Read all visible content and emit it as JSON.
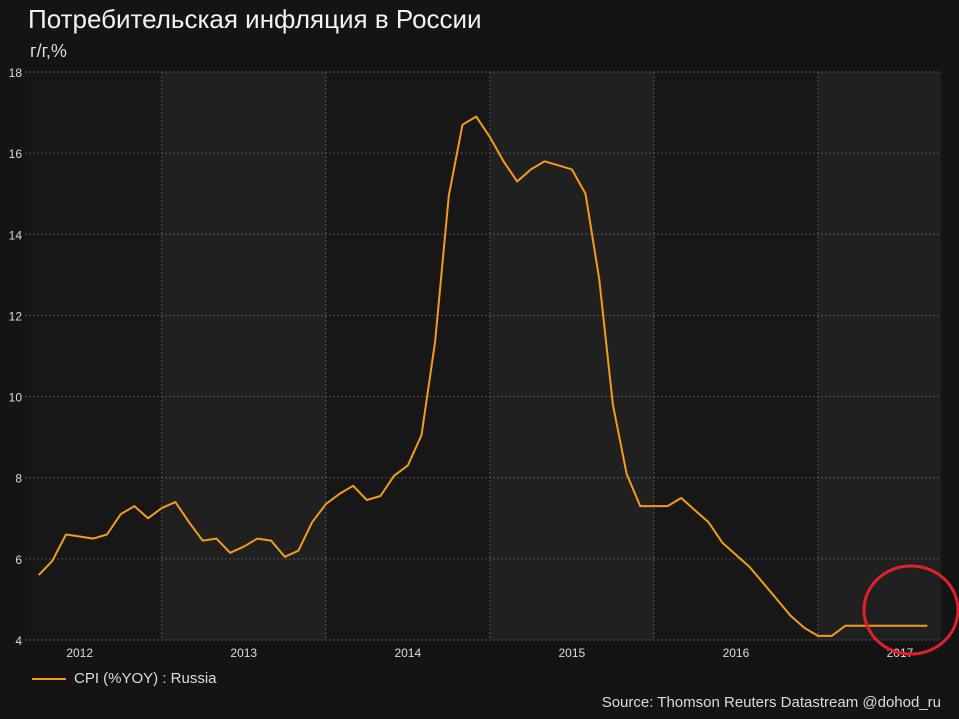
{
  "header": {
    "title": "Потребительская инфляция в России",
    "subtitle": "г/г,%"
  },
  "legend": {
    "label": "CPI (%YOY) : Russia"
  },
  "footer": {
    "source": "Source: Thomson Reuters Datastream @dohod_ru"
  },
  "colors": {
    "line": "#f39c1c",
    "highlight_circle": "#e0202a",
    "band_light": "#202020",
    "band_dark": "#171717",
    "grid": "#555555"
  },
  "chart_data": {
    "type": "line",
    "title": "Потребительская инфляция в России",
    "ylabel": "г/г,%",
    "ylim": [
      4,
      18
    ],
    "y_ticks": [
      4,
      6,
      8,
      10,
      12,
      14,
      16,
      18
    ],
    "xlim": [
      "2011-09",
      "2017-04"
    ],
    "x_tick_labels": [
      "2012",
      "2013",
      "2014",
      "2015",
      "2016",
      "2017"
    ],
    "grid": true,
    "legend_position": "bottom-left",
    "series": [
      {
        "name": "CPI (%YOY) : Russia",
        "x": [
          "2011-10",
          "2011-11",
          "2011-12",
          "2012-01",
          "2012-02",
          "2012-03",
          "2012-04",
          "2012-05",
          "2012-06",
          "2012-07",
          "2012-08",
          "2012-09",
          "2012-10",
          "2012-11",
          "2012-12",
          "2013-01",
          "2013-02",
          "2013-03",
          "2013-04",
          "2013-05",
          "2013-06",
          "2013-07",
          "2013-08",
          "2013-09",
          "2013-10",
          "2013-11",
          "2013-12",
          "2014-01",
          "2014-02",
          "2014-03",
          "2014-04",
          "2014-05",
          "2014-06",
          "2014-07",
          "2014-08",
          "2014-09",
          "2014-10",
          "2014-11",
          "2014-12",
          "2015-01",
          "2015-02",
          "2015-03",
          "2015-04",
          "2015-05",
          "2015-06",
          "2015-07",
          "2015-08",
          "2015-09",
          "2015-10",
          "2015-11",
          "2015-12",
          "2016-01",
          "2016-02",
          "2016-03",
          "2016-04",
          "2016-05",
          "2016-06",
          "2016-07",
          "2016-08",
          "2016-09",
          "2016-10",
          "2016-11",
          "2016-12",
          "2017-01",
          "2017-02",
          "2017-03"
        ],
        "values": [
          5.6,
          5.95,
          6.6,
          6.55,
          6.5,
          6.6,
          7.1,
          7.3,
          7.0,
          7.25,
          7.4,
          6.9,
          6.45,
          6.5,
          6.15,
          6.3,
          6.5,
          6.45,
          6.05,
          6.2,
          6.9,
          7.35,
          7.6,
          7.8,
          7.45,
          7.55,
          8.05,
          8.3,
          9.05,
          11.35,
          14.95,
          16.7,
          16.9,
          16.4,
          15.8,
          15.3,
          15.6,
          15.8,
          15.7,
          15.6,
          15.0,
          12.9,
          9.8,
          8.1,
          7.3,
          7.3,
          7.3,
          7.5,
          7.2,
          6.9,
          6.4,
          6.1,
          5.8,
          5.4,
          5.0,
          4.6,
          4.3,
          4.1,
          4.1,
          4.35,
          4.35,
          4.35,
          4.35,
          4.35,
          4.35,
          4.35
        ]
      }
    ]
  }
}
